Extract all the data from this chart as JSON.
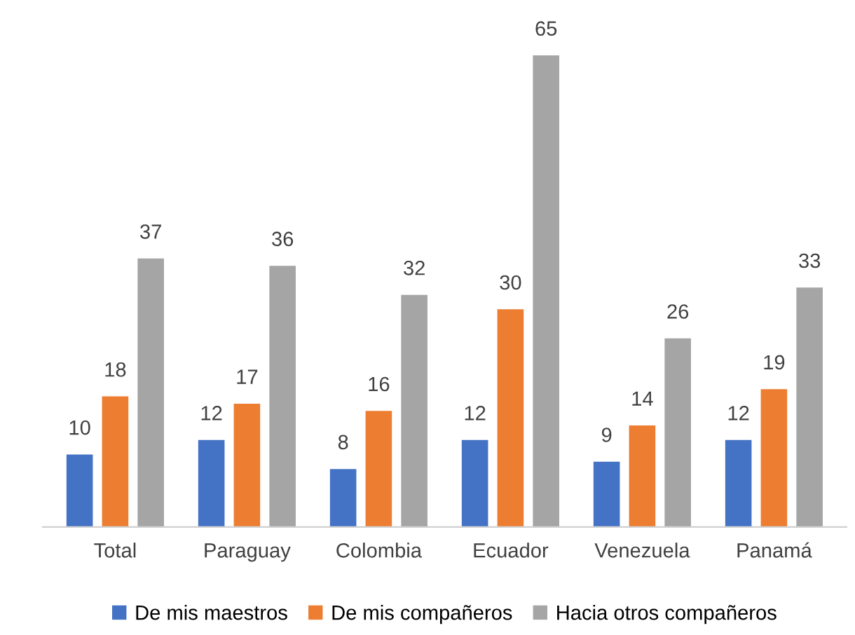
{
  "chart_data": {
    "type": "bar",
    "categories": [
      "Total",
      "Paraguay",
      "Colombia",
      "Ecuador",
      "Venezuela",
      "Panamá"
    ],
    "series": [
      {
        "name": "De mis maestros",
        "color": "#4472c4",
        "values": [
          10,
          12,
          8,
          12,
          9,
          12
        ]
      },
      {
        "name": "De mis compañeros",
        "color": "#ed7d31",
        "values": [
          18,
          17,
          16,
          30,
          14,
          19
        ]
      },
      {
        "name": "Hacia otros compañeros",
        "color": "#a5a5a5",
        "values": [
          37,
          36,
          32,
          65,
          26,
          33
        ]
      }
    ],
    "data_labels": true,
    "grid": false,
    "legend": "bottom"
  }
}
